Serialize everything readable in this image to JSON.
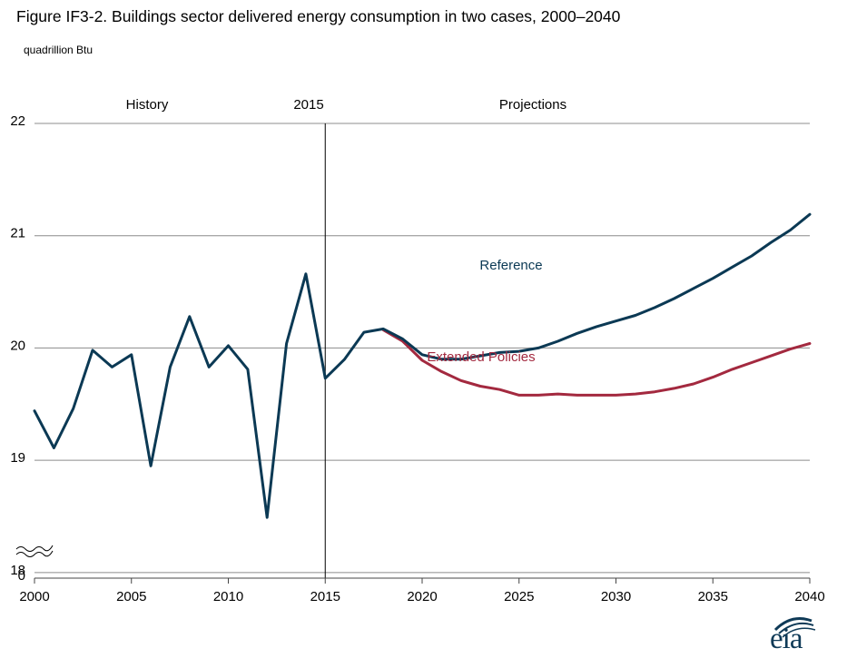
{
  "chart_data": {
    "type": "line",
    "title": "Figure IF3-2. Buildings sector delivered energy consumption in two cases, 2000–2040",
    "unit_label": "quadrillion Btu",
    "ylim": [
      17.95,
      22
    ],
    "y_ticks": [
      0,
      18,
      19,
      20,
      21,
      22
    ],
    "y_axis_break": true,
    "x_ticks": [
      2000,
      2005,
      2010,
      2015,
      2020,
      2025,
      2030,
      2035,
      2040
    ],
    "xlim": [
      2000,
      2040
    ],
    "grid": true,
    "divider_year": 2015,
    "region_labels": {
      "history": "History",
      "divider": "2015",
      "projections": "Projections"
    },
    "series": [
      {
        "name": "Reference",
        "color": "#0b3954",
        "x": [
          2000,
          2001,
          2002,
          2003,
          2004,
          2005,
          2006,
          2007,
          2008,
          2009,
          2010,
          2011,
          2012,
          2013,
          2014,
          2015,
          2016,
          2017,
          2018,
          2019,
          2020,
          2021,
          2022,
          2023,
          2024,
          2025,
          2026,
          2027,
          2028,
          2029,
          2030,
          2031,
          2032,
          2033,
          2034,
          2035,
          2036,
          2037,
          2038,
          2039,
          2040
        ],
        "values": [
          19.44,
          19.11,
          19.46,
          19.98,
          19.83,
          19.94,
          18.95,
          19.83,
          20.28,
          19.83,
          20.02,
          19.81,
          18.49,
          20.04,
          20.66,
          19.73,
          19.9,
          20.14,
          20.17,
          20.08,
          19.94,
          19.9,
          19.9,
          19.93,
          19.96,
          19.97,
          20.0,
          20.06,
          20.13,
          20.19,
          20.24,
          20.29,
          20.36,
          20.44,
          20.53,
          20.62,
          20.72,
          20.82,
          20.94,
          21.05,
          21.19
        ]
      },
      {
        "name": "Extended Policies",
        "color": "#a3293f",
        "x": [
          2018,
          2019,
          2020,
          2021,
          2022,
          2023,
          2024,
          2025,
          2026,
          2027,
          2028,
          2029,
          2030,
          2031,
          2032,
          2033,
          2034,
          2035,
          2036,
          2037,
          2038,
          2039,
          2040
        ],
        "values": [
          20.16,
          20.06,
          19.89,
          19.79,
          19.71,
          19.66,
          19.63,
          19.58,
          19.58,
          19.59,
          19.58,
          19.58,
          19.58,
          19.59,
          19.61,
          19.64,
          19.68,
          19.74,
          19.81,
          19.87,
          19.93,
          19.99,
          20.04
        ]
      }
    ]
  },
  "logo_text": "eia"
}
